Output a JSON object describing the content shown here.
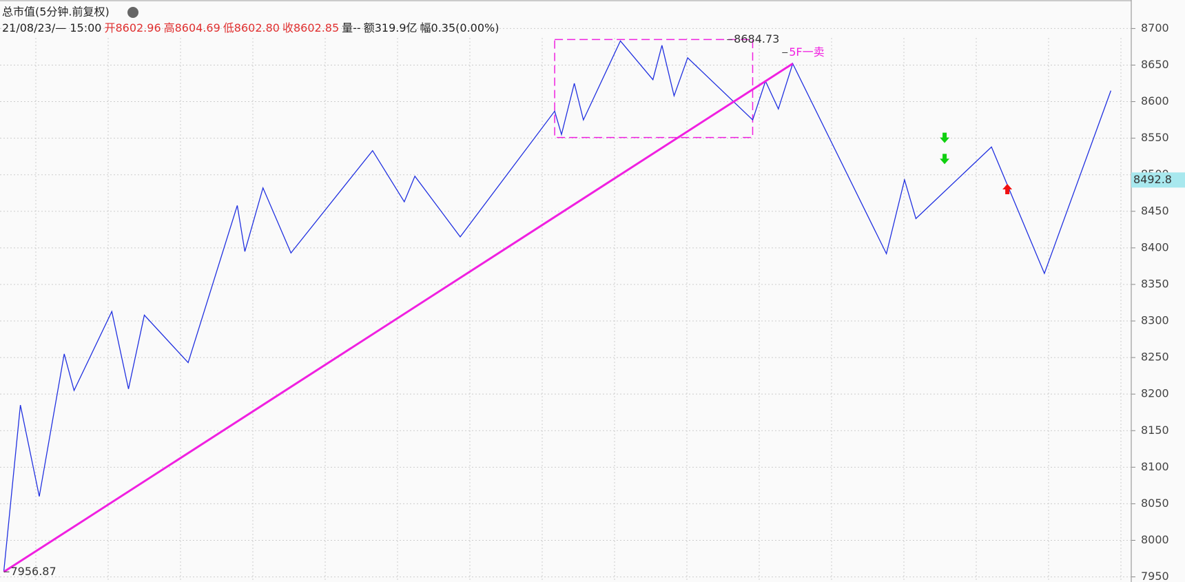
{
  "chart_data": {
    "type": "line",
    "title": "总市值(5分钟.前复权)",
    "info": [
      "21/08/23/— 15:00",
      "开8602.96",
      "高8604.69",
      "低8602.80",
      "收8602.85",
      "量--",
      "额319.9亿",
      "幅0.35(0.00%)"
    ],
    "info_colors": [
      "#222222",
      "#e03030",
      "#e03030",
      "#e03030",
      "#e03030",
      "#222222",
      "#222222",
      "#222222"
    ],
    "xlim": [
      0,
      1497
    ],
    "ylim": [
      7943,
      8739
    ],
    "yticks": [
      7950,
      8000,
      8050,
      8100,
      8150,
      8200,
      8250,
      8300,
      8350,
      8400,
      8450,
      8500,
      8550,
      8600,
      8650,
      8700
    ],
    "grid": true,
    "series": [
      {
        "name": "zigzag",
        "color": "#2030e0",
        "x": [
          5,
          27,
          52,
          85,
          98,
          148,
          170,
          191,
          249,
          314,
          324,
          348,
          385,
          493,
          535,
          549,
          609,
          734,
          743,
          760,
          772,
          821,
          864,
          876,
          892,
          910,
          996,
          1013,
          1030,
          1049,
          1173,
          1197,
          1212,
          1312,
          1382,
          1470
        ],
        "values": [
          7957,
          8185,
          8060,
          8255,
          8205,
          8313,
          8207,
          8308,
          8243,
          8458,
          8395,
          8482,
          8393,
          8533,
          8463,
          8498,
          8415,
          8587,
          8555,
          8625,
          8575,
          8683,
          8630,
          8677,
          8608,
          8660,
          8575,
          8628,
          8590,
          8652,
          8392,
          8493,
          8440,
          8538,
          8365,
          8615
        ]
      },
      {
        "name": "trend",
        "color": "#f020e0",
        "x": [
          5,
          1049
        ],
        "values": [
          7956.87,
          8652
        ]
      }
    ],
    "box": {
      "x": [
        734,
        996
      ],
      "y": [
        8551,
        8685
      ],
      "color": "#f020e0"
    },
    "annotations": [
      {
        "label": "8684.73",
        "x": 962,
        "y": 8684.73,
        "color": "#333333"
      },
      {
        "label": "7956.87",
        "x": 5,
        "y": 7956.87,
        "color": "#333333"
      },
      {
        "label": "5F一卖",
        "x": 1035,
        "y": 8667,
        "color": "#f020e0"
      }
    ],
    "signals": [
      {
        "x": 1250,
        "y": 8551,
        "direction": "down",
        "color": "#10d010"
      },
      {
        "x": 1250,
        "y": 8522,
        "direction": "down",
        "color": "#10d010"
      },
      {
        "x": 1333,
        "y": 8480,
        "direction": "up",
        "color": "#f01010"
      }
    ],
    "last_price": {
      "value": 8492.8,
      "label": "8492.8"
    }
  }
}
